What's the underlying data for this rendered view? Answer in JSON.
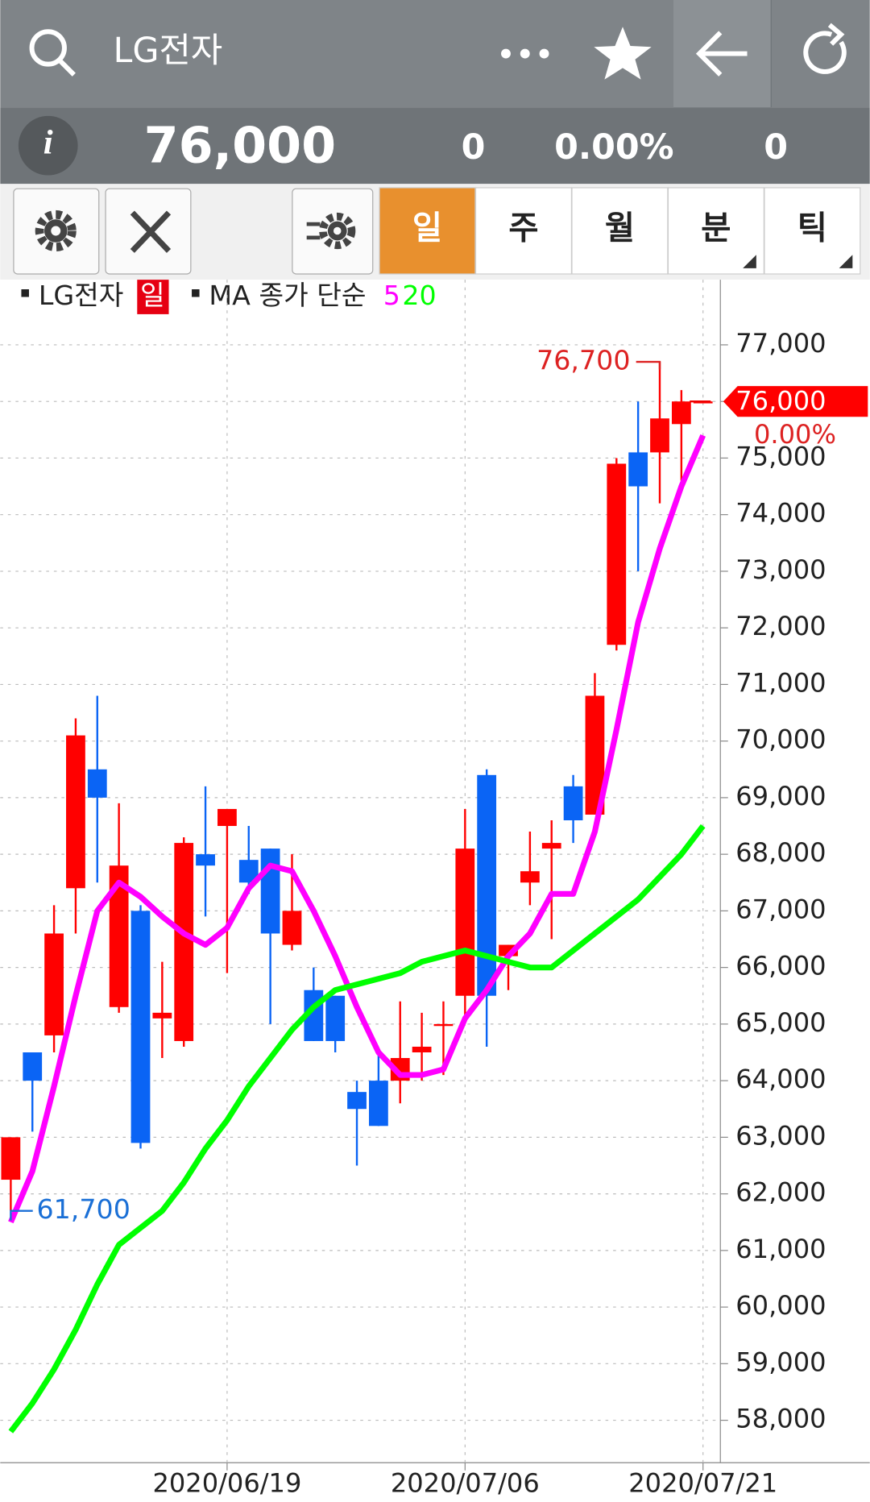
{
  "header": {
    "title": "LG전자"
  },
  "quote": {
    "price": "76,000",
    "change": "0",
    "change_rate": "0.00%",
    "volume": "0"
  },
  "tabs": [
    "일",
    "주",
    "월",
    "분",
    "틱"
  ],
  "chart_data": {
    "type": "candlestick",
    "name": "LG전자",
    "period": "일",
    "ma_label": "MA 종가 단순",
    "categories": [
      null,
      null,
      null,
      null,
      null,
      null,
      null,
      null,
      null,
      null,
      "2020/06/19",
      null,
      null,
      null,
      null,
      null,
      null,
      null,
      null,
      null,
      null,
      "2020/07/06",
      null,
      null,
      null,
      null,
      null,
      null,
      null,
      null,
      null,
      null,
      "2020/07/21"
    ],
    "open": [
      62250,
      64500,
      64800,
      67400,
      69500,
      65300,
      67000,
      65100,
      64700,
      68000,
      68500,
      67900,
      68100,
      66400,
      65600,
      65500,
      63800,
      64000,
      64000,
      64500,
      65000,
      65500,
      69400,
      66200,
      67500,
      68100,
      69200,
      68700,
      71700,
      75100,
      75100,
      75600,
      76000
    ],
    "high": [
      63000,
      64500,
      67100,
      70400,
      70800,
      68900,
      67100,
      66100,
      68300,
      69200,
      68800,
      68500,
      68100,
      68000,
      66000,
      65500,
      64000,
      64500,
      65400,
      65200,
      65400,
      68800,
      69500,
      66400,
      68400,
      68600,
      69400,
      71200,
      75000,
      76000,
      76700,
      76200,
      76000
    ],
    "low": [
      61700,
      63100,
      64500,
      66600,
      67500,
      65200,
      62800,
      64400,
      64600,
      66900,
      65900,
      67300,
      65000,
      66300,
      64700,
      64500,
      62500,
      63200,
      63600,
      64000,
      64100,
      65100,
      64600,
      65600,
      67100,
      66500,
      68200,
      68700,
      71600,
      73000,
      74200,
      74600,
      76000
    ],
    "close": [
      63000,
      64000,
      66600,
      70100,
      69000,
      67800,
      62900,
      65200,
      68200,
      67800,
      68800,
      67500,
      66600,
      67000,
      64700,
      64700,
      63500,
      63200,
      64400,
      64600,
      65000,
      68100,
      65500,
      66400,
      67700,
      68200,
      68600,
      70800,
      74900,
      74500,
      75700,
      76000,
      76000
    ],
    "up_color": "#ff0000",
    "down_color": "#0a64f5",
    "series": [
      {
        "name": "5",
        "color": "#ff00ff",
        "values": [
          61500,
          62400,
          63900,
          65500,
          67000,
          67500,
          67250,
          66900,
          66600,
          66400,
          66700,
          67400,
          67800,
          67700,
          67000,
          66200,
          65300,
          64500,
          64100,
          64100,
          64200,
          65100,
          65600,
          66200,
          66600,
          67300,
          67300,
          68400,
          70200,
          72100,
          73400,
          74500,
          75400
        ]
      },
      {
        "name": "20",
        "color": "#00ff00",
        "values": [
          57800,
          58300,
          58900,
          59600,
          60400,
          61100,
          61400,
          61700,
          62200,
          62800,
          63300,
          63900,
          64400,
          64900,
          65300,
          65600,
          65700,
          65800,
          65900,
          66100,
          66200,
          66300,
          66200,
          66100,
          66000,
          66000,
          66300,
          66600,
          66900,
          67200,
          67600,
          68000,
          68500
        ]
      }
    ],
    "ylim": [
      57250,
      78100
    ],
    "yticks": [
      {
        "value": 58000,
        "label": "58,000"
      },
      {
        "value": 59000,
        "label": "59,000"
      },
      {
        "value": 60000,
        "label": "60,000"
      },
      {
        "value": 61000,
        "label": "61,000"
      },
      {
        "value": 62000,
        "label": "62,000"
      },
      {
        "value": 63000,
        "label": "63,000"
      },
      {
        "value": 64000,
        "label": "64,000"
      },
      {
        "value": 65000,
        "label": "65,000"
      },
      {
        "value": 66000,
        "label": "66,000"
      },
      {
        "value": 67000,
        "label": "67,000"
      },
      {
        "value": 68000,
        "label": "68,000"
      },
      {
        "value": 69000,
        "label": "69,000"
      },
      {
        "value": 70000,
        "label": "70,000"
      },
      {
        "value": 71000,
        "label": "71,000"
      },
      {
        "value": 72000,
        "label": "72,000"
      },
      {
        "value": 73000,
        "label": "73,000"
      },
      {
        "value": 74000,
        "label": "74,000"
      },
      {
        "value": 75000,
        "label": "75,000"
      },
      {
        "value": 76000,
        "label": "76,000"
      },
      {
        "value": 77000,
        "label": "77,000"
      }
    ],
    "grid": true,
    "high_marker": {
      "value": 76700,
      "label": "76,700"
    },
    "low_marker": {
      "value": 61700,
      "label": "61,700"
    },
    "current_price": {
      "value": 76000,
      "label": "76,000"
    },
    "current_change": "0.00%"
  }
}
